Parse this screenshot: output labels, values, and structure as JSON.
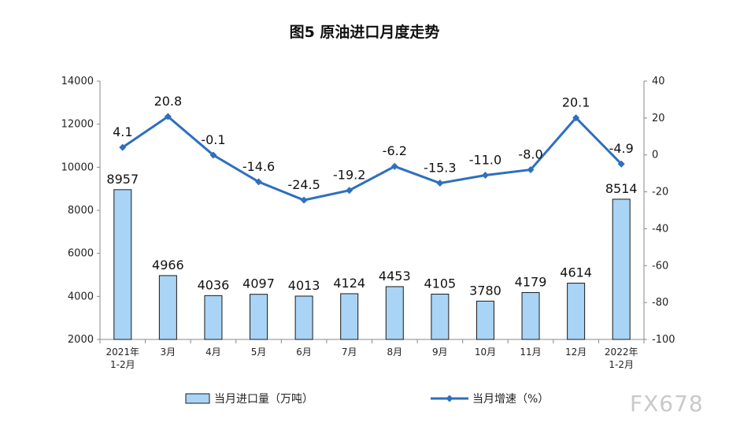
{
  "chart_data": {
    "type": "bar+line",
    "title": "图5 原油进口月度走势",
    "categories": [
      [
        "2021年",
        "1-2月"
      ],
      [
        "3月"
      ],
      [
        "4月"
      ],
      [
        "5月"
      ],
      [
        "6月"
      ],
      [
        "7月"
      ],
      [
        "8月"
      ],
      [
        "9月"
      ],
      [
        "10月"
      ],
      [
        "11月"
      ],
      [
        "12月"
      ],
      [
        "2022年",
        "1-2月"
      ]
    ],
    "series": [
      {
        "name": "当月进口量（万吨）",
        "kind": "bar",
        "axis": "left",
        "color": "#a9d4f5",
        "values": [
          8957,
          4966,
          4036,
          4097,
          4013,
          4124,
          4453,
          4105,
          3780,
          4179,
          4614,
          8514
        ],
        "labels": [
          "8957",
          "4966",
          "4036",
          "4097",
          "4013",
          "4124",
          "4453",
          "4105",
          "3780",
          "4179",
          "4614",
          "8514"
        ]
      },
      {
        "name": "当月增速（%）",
        "kind": "line",
        "axis": "right",
        "color": "#2e6fbe",
        "values": [
          4.1,
          20.8,
          -0.1,
          -14.6,
          -24.5,
          -19.2,
          -6.2,
          -15.3,
          -11.0,
          -8.0,
          20.1,
          -4.9
        ],
        "labels": [
          "4.1",
          "20.8",
          "-0.1",
          "-14.6",
          "-24.5",
          "-19.2",
          "-6.2",
          "-15.3",
          "-11.0",
          "-8.0",
          "20.1",
          "-4.9"
        ]
      }
    ],
    "y_left": {
      "min": 2000,
      "max": 14000,
      "step": 2000,
      "ticks": [
        "2000",
        "4000",
        "6000",
        "8000",
        "10000",
        "12000",
        "14000"
      ]
    },
    "y_right": {
      "min": -100,
      "max": 40,
      "step": 20,
      "ticks": [
        "-100",
        "-80",
        "-60",
        "-40",
        "-20",
        "0",
        "20",
        "40"
      ]
    },
    "legend_position": "bottom",
    "grid": false
  },
  "watermark": "FX678"
}
